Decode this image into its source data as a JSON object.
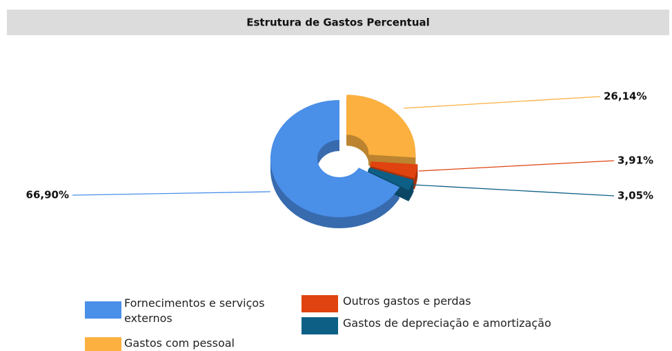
{
  "chart_data": {
    "type": "donut",
    "title": "Estrutura de Gastos Percentual",
    "categories": [
      "Fornecimentos e serviços externos",
      "Gastos com pessoal",
      "Outros gastos e perdas",
      "Gastos de depreciação e amortização"
    ],
    "values": [
      66.9,
      26.14,
      3.91,
      3.05
    ],
    "value_labels": [
      "66,90%",
      "26,14%",
      "3,91%",
      "3,05%"
    ],
    "colors": [
      "#4a8fe8",
      "#fbb040",
      "#e0430f",
      "#0e5f86"
    ]
  }
}
